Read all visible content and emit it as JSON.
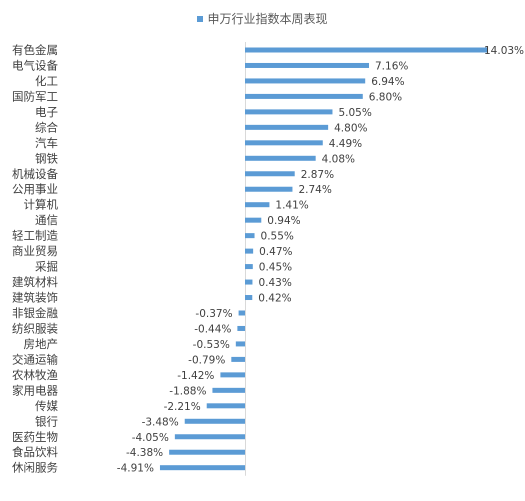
{
  "chart_data": {
    "type": "bar",
    "orientation": "horizontal",
    "legend": {
      "label": "申万行业指数本周表现",
      "placement": "top-center"
    },
    "series": [
      {
        "name": "申万行业指数本周表现",
        "color": "#5B9BD5",
        "categories": [
          "有色金属",
          "电气设备",
          "化工",
          "国防军工",
          "电子",
          "综合",
          "汽车",
          "钢铁",
          "机械设备",
          "公用事业",
          "计算机",
          "通信",
          "轻工制造",
          "商业贸易",
          "采掘",
          "建筑材料",
          "建筑装饰",
          "非银金融",
          "纺织服装",
          "房地产",
          "交通运输",
          "农林牧渔",
          "家用电器",
          "传媒",
          "银行",
          "医药生物",
          "食品饮料",
          "休闲服务"
        ],
        "values": [
          14.03,
          7.16,
          6.94,
          6.8,
          5.05,
          4.8,
          4.49,
          4.08,
          2.87,
          2.74,
          1.41,
          0.94,
          0.55,
          0.47,
          0.45,
          0.43,
          0.42,
          -0.37,
          -0.44,
          -0.53,
          -0.79,
          -1.42,
          -1.88,
          -2.21,
          -3.48,
          -4.05,
          -4.38,
          -4.91
        ],
        "labels": [
          "14.03%",
          "7.16%",
          "6.94%",
          "6.80%",
          "5.05%",
          "4.80%",
          "4.49%",
          "4.08%",
          "2.87%",
          "2.74%",
          "1.41%",
          "0.94%",
          "0.55%",
          "0.47%",
          "0.45%",
          "0.43%",
          "0.42%",
          "-0.37%",
          "-0.44%",
          "-0.53%",
          "-0.79%",
          "-1.42%",
          "-1.88%",
          "-2.21%",
          "-3.48%",
          "-4.05%",
          "-4.38%",
          "-4.91%"
        ]
      }
    ],
    "value_unit": "%",
    "xlim": [
      -6,
      14.03
    ],
    "grid": false
  }
}
